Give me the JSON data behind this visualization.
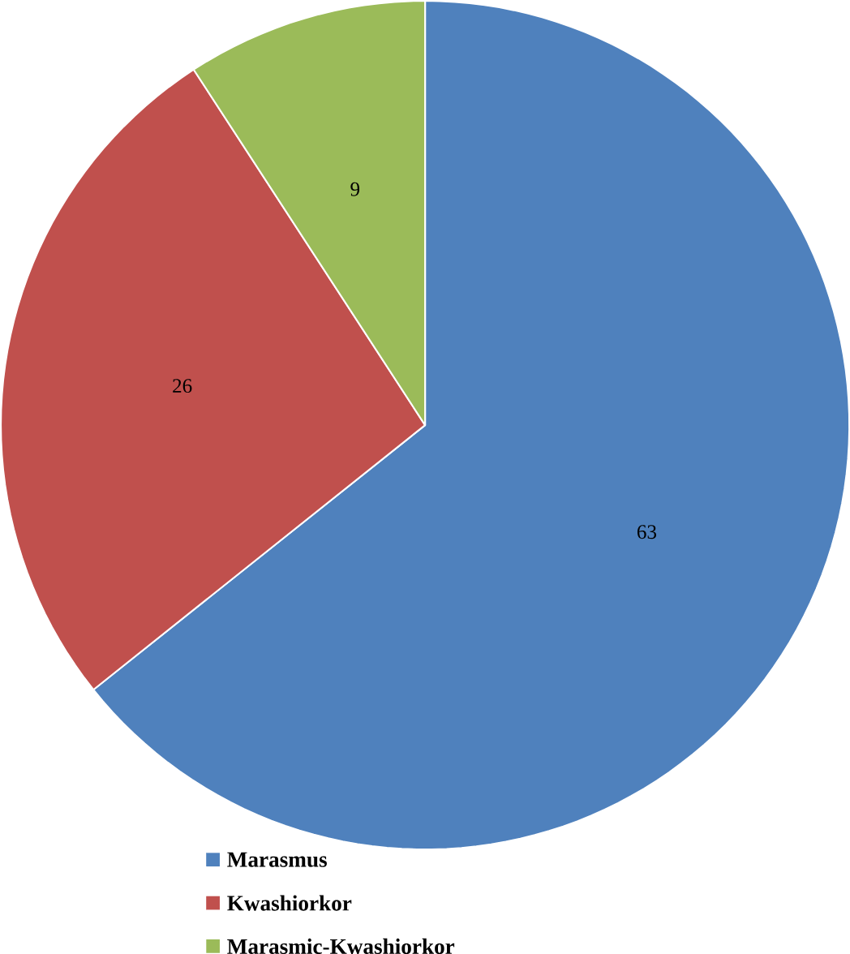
{
  "chart_data": {
    "type": "pie",
    "categories": [
      "Marasmus",
      "Kwashiorkor",
      "Marasmic-Kwashiorkor"
    ],
    "values": [
      63,
      26,
      9
    ],
    "colors": [
      "#4f81bd",
      "#c0504d",
      "#9bbb59"
    ],
    "data_labels": true,
    "legend": "bottom"
  }
}
